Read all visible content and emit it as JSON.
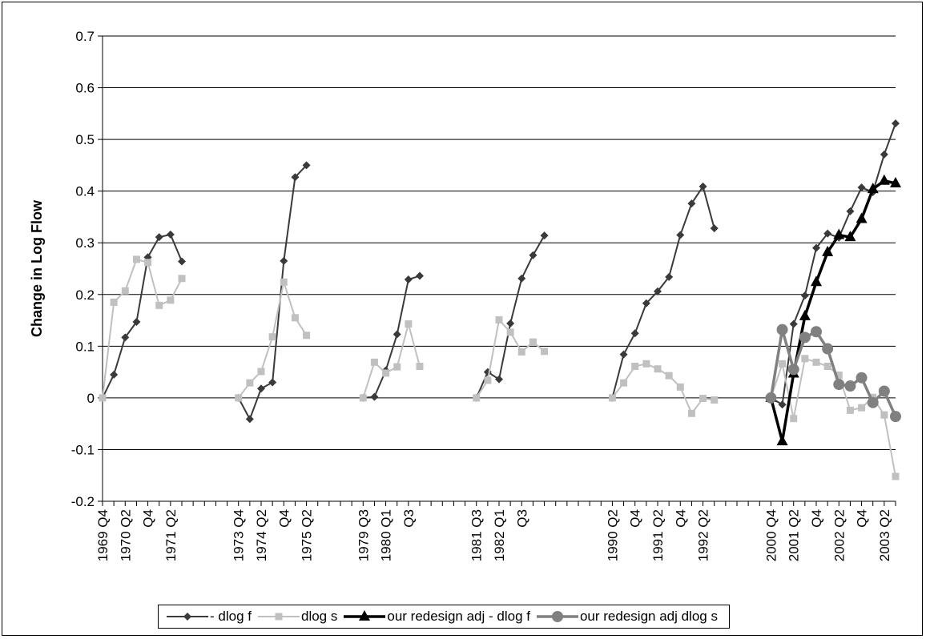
{
  "chart_data": {
    "type": "line",
    "ylabel": "Change in Log Flow",
    "xlabel": "",
    "ylim": [
      -0.2,
      0.7
    ],
    "yticks": [
      -0.2,
      -0.1,
      0,
      0.1,
      0.2,
      0.3,
      0.4,
      0.5,
      0.6,
      0.7
    ],
    "ytick_labels": [
      "-0.2",
      "-0.1",
      "0",
      "0.1",
      "0.2",
      "0.3",
      "0.4",
      "0.5",
      "0.6",
      "0.7"
    ],
    "grid": "horizontal",
    "legend_position": "bottom",
    "colors": {
      "dlog_f": "#3a3a3a",
      "dlog_s": "#c0c0c0",
      "redesign_f": "#000000",
      "redesign_s": "#808080"
    },
    "x_labels": [
      {
        "i": 0,
        "text": "1969 Q4"
      },
      {
        "i": 2,
        "text": "1970 Q2"
      },
      {
        "i": 4,
        "text": "Q4"
      },
      {
        "i": 6,
        "text": "1971 Q2"
      },
      {
        "i": 12,
        "text": "1973 Q4"
      },
      {
        "i": 14,
        "text": "1974 Q2"
      },
      {
        "i": 16,
        "text": "Q4"
      },
      {
        "i": 18,
        "text": "1975 Q2"
      },
      {
        "i": 23,
        "text": "1979 Q3"
      },
      {
        "i": 25,
        "text": "1980 Q1"
      },
      {
        "i": 27,
        "text": "Q3"
      },
      {
        "i": 33,
        "text": "1981 Q3"
      },
      {
        "i": 35,
        "text": "1982 Q1"
      },
      {
        "i": 37,
        "text": "Q3"
      },
      {
        "i": 45,
        "text": "1990 Q2"
      },
      {
        "i": 47,
        "text": "Q4"
      },
      {
        "i": 49,
        "text": "1991 Q2"
      },
      {
        "i": 51,
        "text": "Q4"
      },
      {
        "i": 53,
        "text": "1992 Q2"
      },
      {
        "i": 59,
        "text": "2000 Q4"
      },
      {
        "i": 61,
        "text": "2001 Q2"
      },
      {
        "i": 63,
        "text": "Q4"
      },
      {
        "i": 65,
        "text": "2002 Q2"
      },
      {
        "i": 67,
        "text": "Q4"
      },
      {
        "i": 69,
        "text": "2003 Q2"
      }
    ],
    "series": [
      {
        "name": "- dlog f",
        "key": "dlog_f",
        "marker": "diamond",
        "segments": [
          {
            "start": 0,
            "values": [
              0,
              0.045,
              0.117,
              0.147,
              0.272,
              0.311,
              0.316,
              0.264
            ]
          },
          {
            "start": 12,
            "values": [
              0,
              -0.041,
              0.018,
              0.03,
              0.265,
              0.427,
              0.45
            ]
          },
          {
            "start": 23,
            "values": [
              0,
              0.002,
              0.053,
              0.123,
              0.229,
              0.236
            ]
          },
          {
            "start": 33,
            "values": [
              0,
              0.05,
              0.036,
              0.144,
              0.231,
              0.276,
              0.314
            ]
          },
          {
            "start": 45,
            "values": [
              0,
              0.084,
              0.125,
              0.183,
              0.206,
              0.234,
              0.315,
              0.376,
              0.409,
              0.328
            ]
          },
          {
            "start": 59,
            "values": [
              0,
              -0.013,
              0.143,
              0.198,
              0.29,
              0.318,
              0.31,
              0.361,
              0.407,
              0.398,
              0.471,
              0.531
            ]
          }
        ]
      },
      {
        "name": "dlog s",
        "key": "dlog_s",
        "marker": "square",
        "segments": [
          {
            "start": 0,
            "values": [
              0,
              0.185,
              0.207,
              0.268,
              0.262,
              0.179,
              0.189,
              0.231
            ]
          },
          {
            "start": 12,
            "values": [
              0,
              0.029,
              0.051,
              0.118,
              0.224,
              0.155,
              0.121
            ]
          },
          {
            "start": 23,
            "values": [
              0,
              0.069,
              0.048,
              0.06,
              0.143,
              0.061
            ]
          },
          {
            "start": 33,
            "values": [
              0,
              0.034,
              0.151,
              0.127,
              0.089,
              0.108,
              0.09
            ]
          },
          {
            "start": 45,
            "values": [
              0,
              0.029,
              0.061,
              0.066,
              0.056,
              0.043,
              0.021,
              -0.03,
              -0.001,
              -0.004
            ]
          },
          {
            "start": 59,
            "values": [
              0,
              0.066,
              -0.04,
              0.076,
              0.069,
              0.061,
              0.044,
              -0.024,
              -0.019,
              0.001,
              -0.033,
              -0.152
            ]
          }
        ]
      },
      {
        "name": "our redesign adj - dlog f",
        "key": "redesign_f",
        "marker": "triangle",
        "segments": [
          {
            "start": 59,
            "values": [
              0,
              -0.084,
              0.047,
              0.158,
              0.224,
              0.282,
              0.315,
              0.311,
              0.346,
              0.404,
              0.42,
              0.415
            ]
          }
        ]
      },
      {
        "name": "our redesign adj dlog s",
        "key": "redesign_s",
        "marker": "circle",
        "segments": [
          {
            "start": 59,
            "values": [
              0,
              0.132,
              0.055,
              0.117,
              0.128,
              0.095,
              0.026,
              0.023,
              0.039,
              -0.009,
              0.013,
              -0.036
            ]
          }
        ]
      }
    ],
    "x_slots": 71
  }
}
